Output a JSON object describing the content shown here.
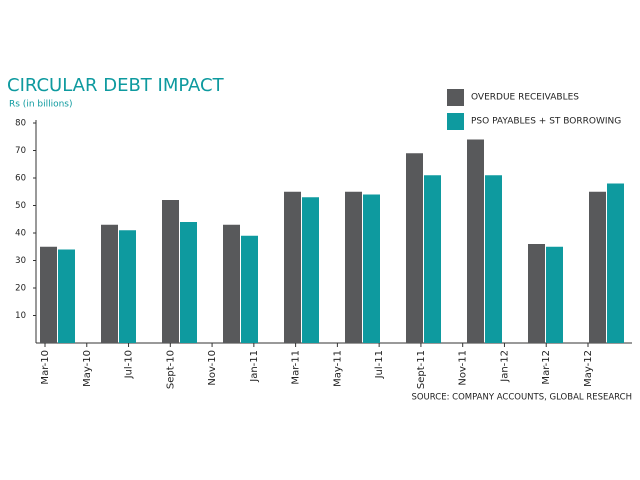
{
  "chart_data": {
    "type": "bar",
    "title": "CIRCULAR DEBT IMPACT",
    "subtitle": "Rs (in billions)",
    "source": "SOURCE: COMPANY ACCOUNTS, GLOBAL RESEARCH",
    "categories": [
      null,
      null,
      null,
      null,
      null,
      null,
      null,
      null,
      null,
      null
    ],
    "x_tick_labels": [
      "Mar-10",
      "May-10",
      "Jul-10",
      "Sept-10",
      "Nov-10",
      "Jan-11",
      "Mar-11",
      "May-11",
      "Jul-11",
      "Sept-11",
      "Nov-11",
      "Jan-12",
      "Mar-12",
      "May-12"
    ],
    "series": [
      {
        "name": "OVERDUE RECEIVABLES",
        "color": "#58595b",
        "values": [
          35,
          43,
          52,
          43,
          55,
          55,
          69,
          74,
          36,
          55
        ]
      },
      {
        "name": "PSO PAYABLES + ST BORROWING",
        "color": "#0e9a9f",
        "values": [
          34,
          41,
          44,
          39,
          53,
          54,
          61,
          61,
          35,
          58
        ]
      }
    ],
    "ylim": [
      0,
      80
    ],
    "yticks": [
      10,
      20,
      30,
      40,
      50,
      60,
      70,
      80
    ],
    "grid": false,
    "legend": "top-right"
  }
}
